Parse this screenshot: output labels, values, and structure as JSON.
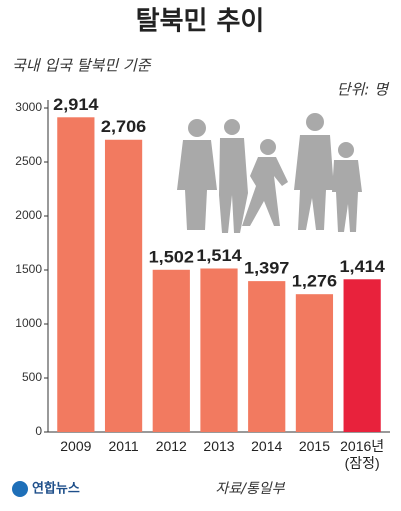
{
  "chart_data": {
    "type": "bar",
    "title": "탈북민 추이",
    "subtitle": "국내 입국 탈북민 기준",
    "unit": "단위: 명",
    "categories": [
      "2009",
      "2011",
      "2012",
      "2013",
      "2014",
      "2015",
      "2016년\n(잠정)"
    ],
    "values": [
      2914,
      2706,
      1502,
      1514,
      1397,
      1276,
      1414
    ],
    "value_labels": [
      "2,914",
      "2,706",
      "1,502",
      "1,514",
      "1,397",
      "1,276",
      "1,414"
    ],
    "colors": [
      "#f27a60",
      "#f27a60",
      "#f27a60",
      "#f27a60",
      "#f27a60",
      "#f27a60",
      "#e8223c"
    ],
    "ylim": [
      0,
      3000
    ],
    "yticks": [
      0,
      500,
      1000,
      1500,
      2000,
      2500,
      3000
    ],
    "source": "자료/통일부",
    "logo": "연합뉴스"
  }
}
